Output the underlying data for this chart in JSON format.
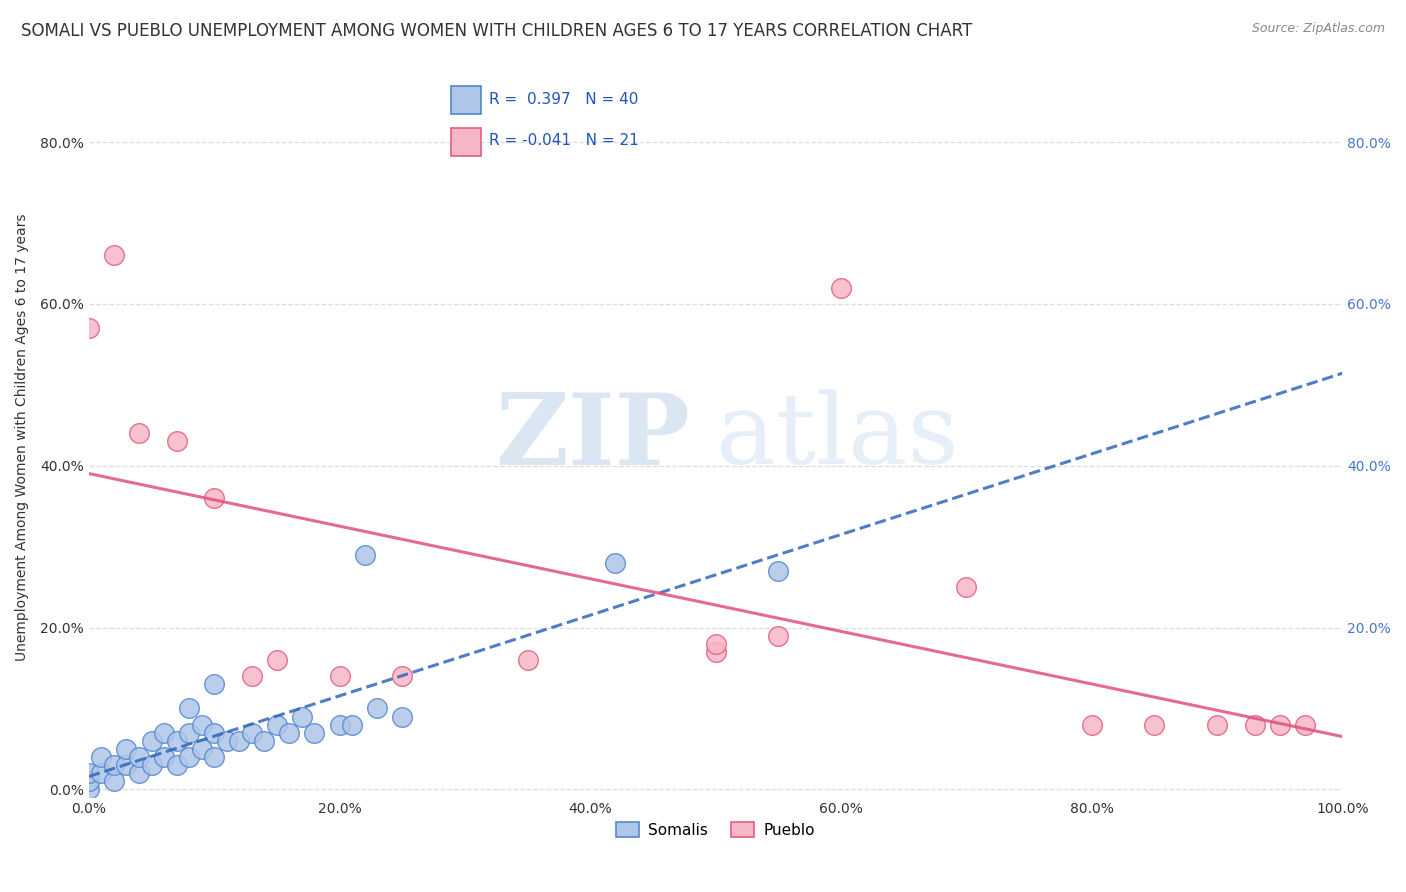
{
  "title": "SOMALI VS PUEBLO UNEMPLOYMENT AMONG WOMEN WITH CHILDREN AGES 6 TO 17 YEARS CORRELATION CHART",
  "source": "Source: ZipAtlas.com",
  "ylabel": "Unemployment Among Women with Children Ages 6 to 17 years",
  "watermark_zip": "ZIP",
  "watermark_atlas": "atlas",
  "xlim": [
    0.0,
    1.0
  ],
  "ylim": [
    -0.01,
    0.88
  ],
  "xticks": [
    0.0,
    0.2,
    0.4,
    0.6,
    0.8,
    1.0
  ],
  "xtick_labels": [
    "0.0%",
    "20.0%",
    "40.0%",
    "60.0%",
    "80.0%",
    "100.0%"
  ],
  "yticks": [
    0.0,
    0.2,
    0.4,
    0.6,
    0.8
  ],
  "ytick_labels": [
    "0.0%",
    "20.0%",
    "40.0%",
    "60.0%",
    "80.0%"
  ],
  "right_yticks": [
    0.2,
    0.4,
    0.6,
    0.8
  ],
  "right_ytick_labels": [
    "20.0%",
    "40.0%",
    "60.0%",
    "80.0%"
  ],
  "somali_color": "#aec6e8",
  "pueblo_color": "#f7b6c8",
  "somali_edge": "#5588cc",
  "pueblo_edge": "#e0607a",
  "trend_somali_color": "#3366bb",
  "trend_pueblo_color": "#e05080",
  "R_somali": 0.397,
  "N_somali": 40,
  "R_pueblo": -0.041,
  "N_pueblo": 21,
  "legend_labels": [
    "Somalis",
    "Pueblo"
  ],
  "somali_x": [
    0.0,
    0.0,
    0.0,
    0.01,
    0.01,
    0.02,
    0.02,
    0.03,
    0.03,
    0.04,
    0.04,
    0.05,
    0.05,
    0.06,
    0.06,
    0.07,
    0.07,
    0.08,
    0.08,
    0.09,
    0.09,
    0.1,
    0.1,
    0.11,
    0.12,
    0.13,
    0.14,
    0.15,
    0.16,
    0.17,
    0.18,
    0.2,
    0.21,
    0.22,
    0.23,
    0.25,
    0.42,
    0.55,
    0.1,
    0.08
  ],
  "somali_y": [
    0.0,
    0.01,
    0.02,
    0.02,
    0.04,
    0.01,
    0.03,
    0.03,
    0.05,
    0.02,
    0.04,
    0.03,
    0.06,
    0.04,
    0.07,
    0.03,
    0.06,
    0.04,
    0.07,
    0.05,
    0.08,
    0.04,
    0.07,
    0.06,
    0.06,
    0.07,
    0.06,
    0.08,
    0.07,
    0.09,
    0.07,
    0.08,
    0.08,
    0.29,
    0.1,
    0.09,
    0.28,
    0.27,
    0.13,
    0.1
  ],
  "pueblo_x": [
    0.0,
    0.02,
    0.04,
    0.07,
    0.1,
    0.13,
    0.15,
    0.2,
    0.25,
    0.35,
    0.5,
    0.55,
    0.6,
    0.7,
    0.8,
    0.85,
    0.9,
    0.93,
    0.95,
    0.97,
    0.5
  ],
  "pueblo_y": [
    0.57,
    0.66,
    0.44,
    0.43,
    0.36,
    0.14,
    0.16,
    0.14,
    0.14,
    0.16,
    0.17,
    0.19,
    0.62,
    0.25,
    0.08,
    0.08,
    0.08,
    0.08,
    0.08,
    0.08,
    0.18
  ],
  "grid_color": "#dddddd",
  "background_color": "#ffffff",
  "title_fontsize": 12,
  "axis_label_fontsize": 10,
  "tick_fontsize": 10,
  "legend_fontsize": 11
}
